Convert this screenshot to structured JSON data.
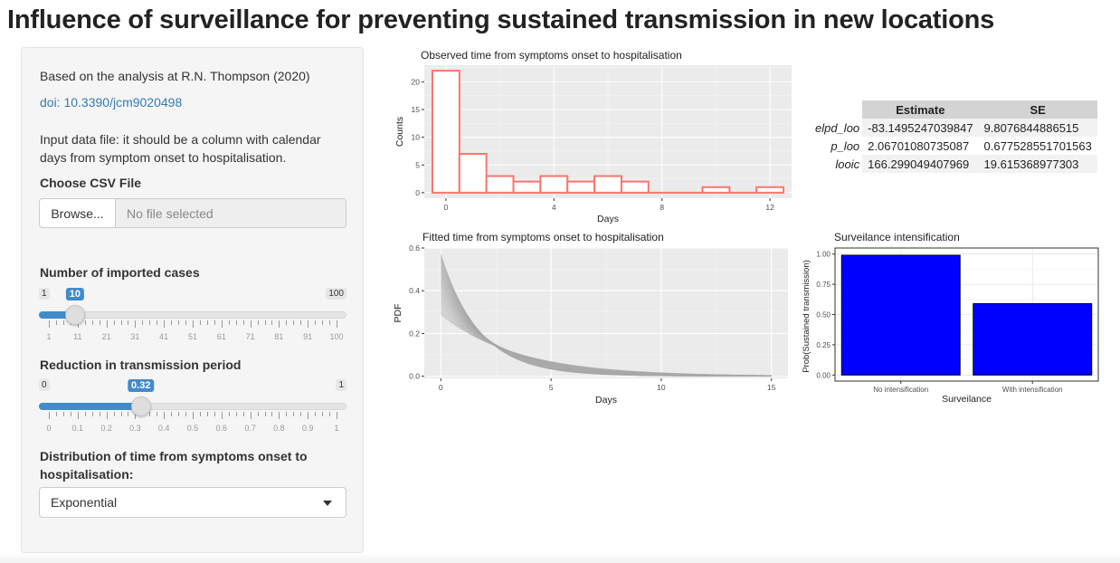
{
  "page": {
    "title": "Influence of surveillance for preventing sustained transmission in new locations"
  },
  "sidebar": {
    "reference_text": "Based on the analysis at R.N. Thompson (2020)",
    "doi_link": "doi: 10.3390/jcm9020498",
    "input_note_line1": "Input data file: it should be a column with calendar",
    "input_note_line2": "days from symptom onset to hospitalisation.",
    "file_input": {
      "label": "Choose CSV File",
      "button_label": "Browse...",
      "placeholder": "No file selected"
    },
    "imported_cases": {
      "label": "Number of imported cases",
      "min": 1,
      "max": 100,
      "value": 10,
      "min_label": "1",
      "max_label": "100",
      "value_label": "10",
      "tick_labels": [
        "1",
        "11",
        "21",
        "31",
        "41",
        "51",
        "61",
        "71",
        "81",
        "91",
        "100"
      ]
    },
    "reduction": {
      "label": "Reduction in transmission period",
      "min": 0,
      "max": 1,
      "value": 0.32,
      "min_label": "0",
      "max_label": "1",
      "value_label": "0.32",
      "tick_labels": [
        "0",
        "0.1",
        "0.2",
        "0.3",
        "0.4",
        "0.5",
        "0.6",
        "0.7",
        "0.8",
        "0.9",
        "1"
      ]
    },
    "distribution": {
      "label_line1": "Distribution of time from symptoms onset to",
      "label_line2": "hospitalisation:",
      "selected": "Exponential"
    }
  },
  "estimates_table": {
    "columns": [
      "Estimate",
      "SE"
    ],
    "rows": [
      {
        "name": "elpd_loo",
        "estimate": "-83.1495247039847",
        "se": "9.8076844886515"
      },
      {
        "name": "p_loo",
        "estimate": "2.06701080735087",
        "se": "0.677528551701563"
      },
      {
        "name": "looic",
        "estimate": "166.299049407969",
        "se": "19.615368977303"
      }
    ]
  },
  "colors": {
    "accent": "#428bca",
    "histogram_outline": "#f8766d",
    "bar_fill": "#0000ff",
    "curve": "#a8a8a8",
    "panel_bg": "#ebebeb"
  },
  "chart_data": [
    {
      "type": "bar",
      "title": "Observed time from symptoms onset to hospitalisation",
      "xlabel": "Days",
      "ylabel": "Counts",
      "x": [
        0,
        1,
        2,
        3,
        4,
        5,
        6,
        7,
        8,
        9,
        10,
        11,
        12
      ],
      "values": [
        22,
        7,
        3,
        2,
        3,
        2,
        3,
        2,
        0,
        0,
        1,
        0,
        1
      ],
      "xlim": [
        -0.8,
        12.8
      ],
      "ylim": [
        -1,
        23
      ],
      "xticks": [
        0,
        4,
        8,
        12
      ],
      "yticks": [
        0,
        5,
        10,
        15,
        20
      ],
      "grid": true
    },
    {
      "type": "line",
      "title": "Fitted time from symptoms onset to hospitalisation",
      "xlabel": "Days",
      "ylabel": "PDF",
      "rates": [
        0.29,
        0.3,
        0.31,
        0.32,
        0.33,
        0.34,
        0.35,
        0.36,
        0.37,
        0.38,
        0.39,
        0.4,
        0.41,
        0.42,
        0.43,
        0.44,
        0.45,
        0.46,
        0.47,
        0.48,
        0.49,
        0.5,
        0.51,
        0.52,
        0.53,
        0.54,
        0.55,
        0.56,
        0.57
      ],
      "x_range": [
        0,
        15
      ],
      "xlim": [
        -0.75,
        15.75
      ],
      "ylim": [
        -0.01,
        0.6
      ],
      "xticks": [
        0,
        5,
        10,
        15
      ],
      "yticks": [
        0.0,
        0.2,
        0.4,
        0.6
      ],
      "ytick_labels": [
        "0.0",
        "0.2",
        "0.4",
        "0.6"
      ],
      "grid": true
    },
    {
      "type": "bar",
      "title": "Surveilance intensification",
      "xlabel": "Surveilance",
      "ylabel": "Prob(Sustained transmission)",
      "categories": [
        "No intensification",
        "With intensification"
      ],
      "values": [
        0.99,
        0.59
      ],
      "ylim": [
        -0.05,
        1.05
      ],
      "yticks": [
        0.0,
        0.25,
        0.5,
        0.75,
        1.0
      ],
      "ytick_labels": [
        "0.00",
        "0.25",
        "0.50",
        "0.75",
        "1.00"
      ],
      "grid": true
    }
  ]
}
